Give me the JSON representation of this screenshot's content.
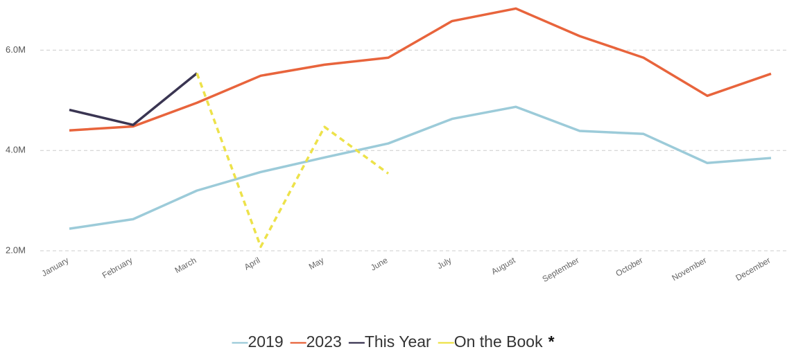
{
  "chart_data": {
    "type": "line",
    "categories": [
      "January",
      "February",
      "March",
      "April",
      "May",
      "June",
      "July",
      "August",
      "September",
      "October",
      "November",
      "December"
    ],
    "series": [
      {
        "name": "2019",
        "color": "#9ccbd9",
        "values": [
          2440000,
          2630000,
          3200000,
          3570000,
          3860000,
          4140000,
          4630000,
          4870000,
          4390000,
          4330000,
          3750000,
          3850000
        ]
      },
      {
        "name": "2023",
        "color": "#e8643c",
        "values": [
          4400000,
          4480000,
          4950000,
          5490000,
          5710000,
          5850000,
          6580000,
          6830000,
          6280000,
          5850000,
          5090000,
          5530000
        ]
      },
      {
        "name": "This Year",
        "color": "#3a3552",
        "values": [
          4810000,
          4510000,
          5540000,
          null,
          null,
          null,
          null,
          null,
          null,
          null,
          null,
          null
        ]
      },
      {
        "name": "On the Book",
        "color": "#ede24a",
        "style": "dashed",
        "values": [
          null,
          null,
          5540000,
          2080000,
          4470000,
          3540000,
          null,
          null,
          null,
          null,
          null,
          null
        ]
      }
    ],
    "legend_note": "*",
    "ylim": [
      2000000,
      7000000
    ],
    "yticks": [
      {
        "value": 2000000,
        "label": "2.0M"
      },
      {
        "value": 4000000,
        "label": "4.0M"
      },
      {
        "value": 6000000,
        "label": "6.0M"
      }
    ],
    "grid": true,
    "legend": "bottom"
  }
}
